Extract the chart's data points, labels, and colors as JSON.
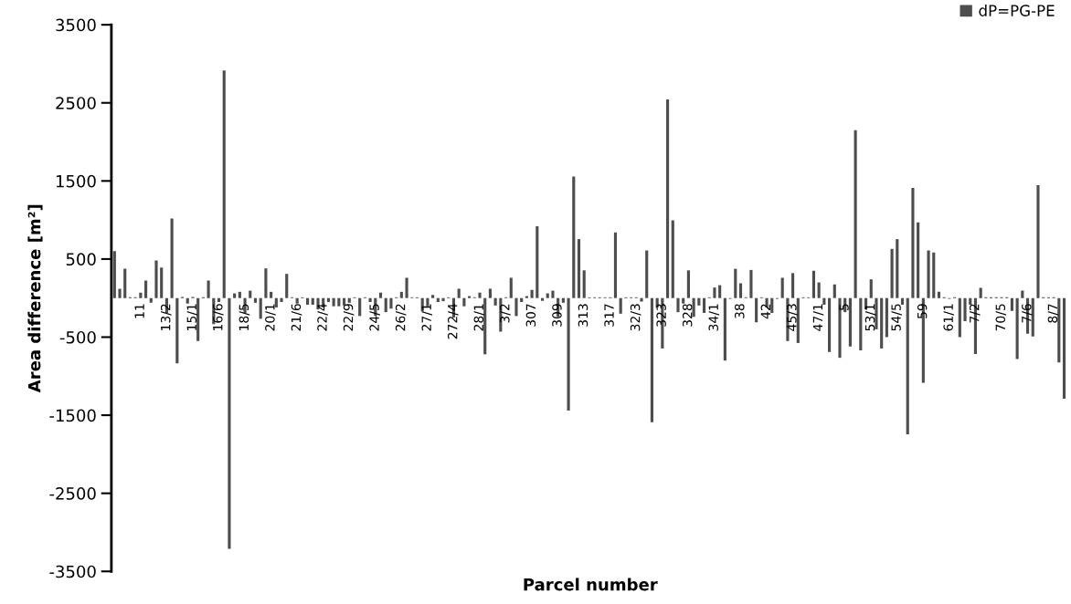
{
  "chart_data": {
    "type": "bar",
    "xlabel": "Parcel number",
    "ylabel": "Area difference [m²]",
    "categories": [
      null,
      null,
      null,
      null,
      null,
      "11",
      null,
      null,
      null,
      null,
      "13/2",
      null,
      null,
      null,
      null,
      "15/1",
      null,
      null,
      null,
      null,
      "16/6",
      null,
      null,
      null,
      null,
      "18/5",
      null,
      null,
      null,
      null,
      "20/1",
      null,
      null,
      null,
      null,
      "21/6",
      null,
      null,
      null,
      null,
      "22/4",
      null,
      null,
      null,
      null,
      "22/9",
      null,
      null,
      null,
      null,
      "24/5",
      null,
      null,
      null,
      null,
      "26/2",
      null,
      null,
      null,
      null,
      "27/1",
      null,
      null,
      null,
      null,
      "272/4",
      null,
      null,
      null,
      null,
      "28/1",
      null,
      null,
      null,
      null,
      "3/2",
      null,
      null,
      null,
      null,
      "307",
      null,
      null,
      null,
      null,
      "309",
      null,
      null,
      null,
      null,
      "313",
      null,
      null,
      null,
      null,
      "317",
      null,
      null,
      null,
      null,
      "32/3",
      null,
      null,
      null,
      null,
      "323",
      null,
      null,
      null,
      null,
      "328",
      null,
      null,
      null,
      null,
      "34/1",
      null,
      null,
      null,
      null,
      "38",
      null,
      null,
      null,
      null,
      "42",
      null,
      null,
      null,
      null,
      "45/3",
      null,
      null,
      null,
      null,
      "47/1",
      null,
      null,
      null,
      null,
      "5",
      null,
      null,
      null,
      null,
      "53/1",
      null,
      null,
      null,
      null,
      "54/5",
      null,
      null,
      null,
      null,
      "59",
      null,
      null,
      null,
      null,
      "61/1",
      null,
      null,
      null,
      null,
      "7/2",
      null,
      null,
      null,
      null,
      "70/5",
      null,
      null,
      null,
      null,
      "7/6",
      null,
      null,
      null,
      null,
      "8/7",
      null,
      null
    ],
    "series": [
      {
        "name": "dP=PG-PE",
        "color": "#4d4d4d",
        "values": [
          600,
          120,
          375,
          10,
          10,
          70,
          225,
          -60,
          480,
          390,
          -190,
          1020,
          -835,
          15,
          -70,
          15,
          -550,
          10,
          225,
          -335,
          -50,
          2915,
          -3210,
          60,
          80,
          -190,
          95,
          -60,
          -265,
          380,
          80,
          -120,
          -50,
          310,
          10,
          -70,
          10,
          -85,
          -85,
          -145,
          -120,
          -50,
          -105,
          -105,
          -95,
          -60,
          10,
          -230,
          10,
          -50,
          -230,
          70,
          -180,
          -135,
          10,
          80,
          260,
          10,
          10,
          -170,
          -105,
          40,
          -50,
          -40,
          10,
          -250,
          120,
          -105,
          25,
          10,
          70,
          -720,
          120,
          -95,
          -430,
          10,
          260,
          -230,
          -50,
          25,
          105,
          920,
          -35,
          60,
          95,
          -240,
          -60,
          -1440,
          1555,
          755,
          355,
          10,
          10,
          10,
          10,
          10,
          840,
          -200,
          10,
          10,
          10,
          -45,
          610,
          -1590,
          -120,
          -645,
          2545,
          995,
          -180,
          -70,
          355,
          -240,
          -95,
          -190,
          10,
          135,
          165,
          -800,
          -10,
          375,
          190,
          10,
          360,
          -310,
          10,
          -120,
          -190,
          -10,
          260,
          -550,
          320,
          -575,
          10,
          10,
          350,
          200,
          -85,
          -690,
          175,
          -765,
          -180,
          -620,
          2150,
          -670,
          -145,
          240,
          -400,
          -645,
          -500,
          630,
          755,
          -85,
          -1745,
          1410,
          970,
          -1085,
          610,
          585,
          80,
          10,
          -10,
          10,
          -500,
          -295,
          -85,
          -715,
          130,
          10,
          10,
          10,
          10,
          10,
          -165,
          -780,
          95,
          -455,
          -490,
          1445,
          10,
          10,
          10,
          -825,
          -1290
        ]
      }
    ],
    "ylim": [
      -3500,
      3500
    ],
    "yticks": [
      -3500,
      -2500,
      -1500,
      -500,
      500,
      1500,
      2500,
      3500
    ],
    "legend": "top right",
    "grid": false
  }
}
